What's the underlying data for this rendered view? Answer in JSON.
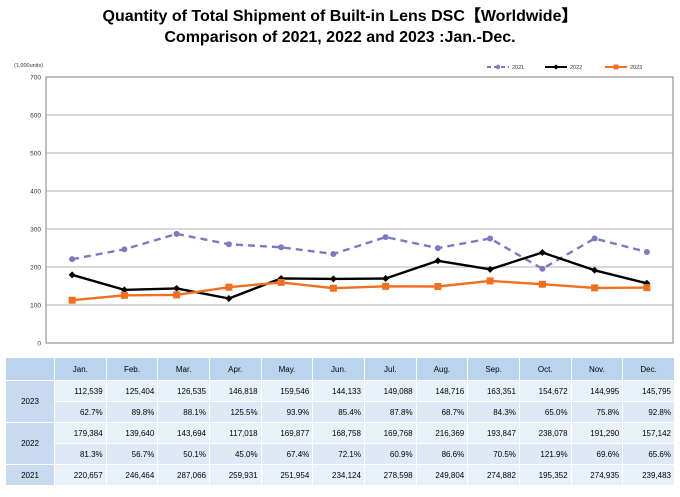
{
  "title_line1": "Quantity of Total Shipment of Built-in Lens DSC【Worldwide】",
  "title_line2": "Comparison of 2021, 2022 and 2023 :Jan.-Dec.",
  "chart_data": {
    "type": "line",
    "unit_label": "(1,000units)",
    "categories": [
      "Jan.",
      "Feb.",
      "Mar.",
      "Apr.",
      "May.",
      "Jun.",
      "Jul.",
      "Aug.",
      "Sep.",
      "Oct.",
      "Nov.",
      "Dec."
    ],
    "ylim": [
      0,
      700
    ],
    "yticks": [
      "0",
      "100",
      "200",
      "300",
      "400",
      "500",
      "600",
      "700"
    ],
    "grid": true,
    "legend_position": "top-right",
    "series": [
      {
        "name": "2021",
        "color": "#7b7bc4",
        "style": "dashed-circle",
        "values": [
          220.657,
          246.464,
          287.066,
          259.931,
          251.954,
          234.124,
          278.598,
          249.804,
          274.882,
          195.352,
          274.935,
          239.483
        ]
      },
      {
        "name": "2022",
        "color": "#000000",
        "style": "solid-diamond",
        "values": [
          179.384,
          139.64,
          143.694,
          117.018,
          169.877,
          168.758,
          169.768,
          216.369,
          193.847,
          238.078,
          191.29,
          157.142
        ]
      },
      {
        "name": "2023",
        "color": "#f07020",
        "style": "solid-square",
        "values": [
          112.539,
          125.404,
          126.535,
          146.818,
          159.546,
          144.133,
          149.088,
          148.716,
          163.351,
          154.672,
          144.995,
          145.795
        ]
      }
    ]
  },
  "table": {
    "months": [
      "Jan.",
      "Feb.",
      "Mar.",
      "Apr.",
      "May.",
      "Jun.",
      "Jul.",
      "Aug.",
      "Sep.",
      "Oct.",
      "Nov.",
      "Dec."
    ],
    "rows": [
      {
        "year": "2023",
        "values": [
          "112,539",
          "125,404",
          "126,535",
          "146,818",
          "159,546",
          "144,133",
          "149,088",
          "148,716",
          "163,351",
          "154,672",
          "144,995",
          "145,795"
        ],
        "percents": [
          "62.7%",
          "89.8%",
          "88.1%",
          "125.5%",
          "93.9%",
          "85.4%",
          "87.8%",
          "68.7%",
          "84.3%",
          "65.0%",
          "75.8%",
          "92.8%"
        ]
      },
      {
        "year": "2022",
        "values": [
          "179,384",
          "139,640",
          "143,694",
          "117,018",
          "169,877",
          "168,758",
          "169,768",
          "216,369",
          "193,847",
          "238,078",
          "191,290",
          "157,142"
        ],
        "percents": [
          "81.3%",
          "56.7%",
          "50.1%",
          "45.0%",
          "67.4%",
          "72.1%",
          "60.9%",
          "86.6%",
          "70.5%",
          "121.9%",
          "69.6%",
          "65.6%"
        ]
      },
      {
        "year": "2021",
        "values": [
          "220,657",
          "246,464",
          "287,066",
          "259,931",
          "251,954",
          "234,124",
          "278,598",
          "249,804",
          "274,882",
          "195,352",
          "274,935",
          "239,483"
        ]
      }
    ]
  }
}
